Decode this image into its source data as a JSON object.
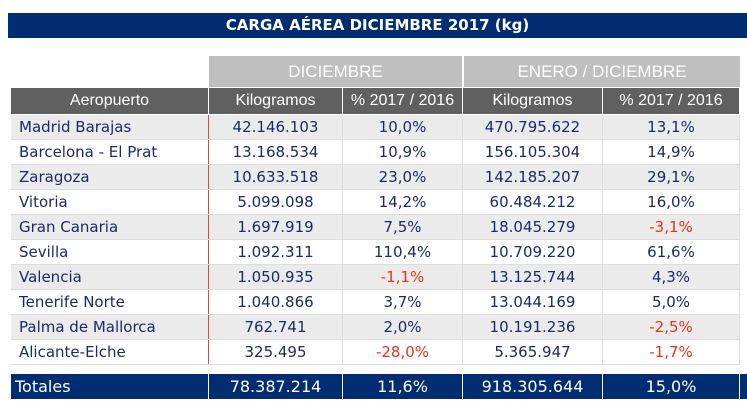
{
  "title": "CARGA AÉREA DICIEMBRE 2017 (kg)",
  "groups": [
    "DICIEMBRE",
    "ENERO / DICIEMBRE"
  ],
  "headers": [
    "Aeropuerto",
    "Kilogramos",
    "% 2017 / 2016",
    "Kilogramos",
    "% 2017 / 2016"
  ],
  "rows": [
    [
      "Madrid Barajas",
      "42.146.103",
      "10,0%",
      "470.795.622",
      "13,1%"
    ],
    [
      "Barcelona - El Prat",
      "13.168.534",
      "10,9%",
      "156.105.304",
      "14,9%"
    ],
    [
      "Zaragoza",
      "10.633.518",
      "23,0%",
      "142.185.207",
      "29,1%"
    ],
    [
      "Vitoria",
      "5.099.098",
      "14,2%",
      "60.484.212",
      "16,0%"
    ],
    [
      "Gran Canaria",
      "1.697.919",
      "7,5%",
      "18.045.279",
      "-3,1%"
    ],
    [
      "Sevilla",
      "1.092.311",
      "110,4%",
      "10.709.220",
      "61,6%"
    ],
    [
      "Valencia",
      "1.050.935",
      "-1,1%",
      "13.125.744",
      "4,3%"
    ],
    [
      "Tenerife Norte",
      "1.040.866",
      "3,7%",
      "13.044.169",
      "5,0%"
    ],
    [
      "Palma de Mallorca",
      "762.741",
      "2,0%",
      "10.191.236",
      "-2,5%"
    ],
    [
      "Alicante-Elche",
      "325.495",
      "-28,0%",
      "5.365.947",
      "-1,7%"
    ]
  ],
  "totals": [
    "Totales",
    "78.387.214",
    "11,6%",
    "918.305.644",
    "15,0%"
  ],
  "colors": {
    "brand": "#002d72",
    "negative": "#e8331a",
    "text": "#1b2a6b",
    "header": "#606060",
    "group": "#bfbfbf"
  }
}
